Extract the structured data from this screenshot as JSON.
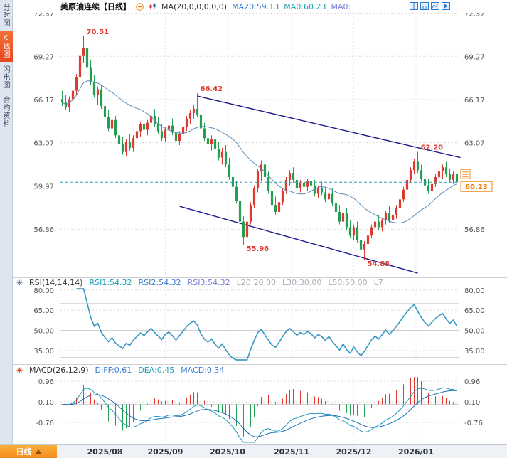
{
  "sidebar": {
    "tabs": [
      {
        "id": "time-chart",
        "label": "分时图",
        "active": false
      },
      {
        "id": "kline-chart",
        "label": "K线图",
        "active": true
      },
      {
        "id": "flash-chart",
        "label": "闪电图",
        "active": false
      },
      {
        "id": "contract-info",
        "label": "合约资料",
        "active": false
      }
    ]
  },
  "header": {
    "title": "美原油连续",
    "period": "【日线】",
    "ma_param": "MA(20,0,0,0,0,0)",
    "ma20": "MA20:59.13",
    "ma0": "MA0:60.23",
    "ma0b": "MA0:"
  },
  "icons": {
    "collapse": "minus-circle",
    "ma_indicator": "candlestick",
    "layout_grid": "grid-4",
    "layout_split": "grid-6",
    "chart_style": "line-chart",
    "play": "play-arrow",
    "rsi_settings": "asterisk",
    "macd_settings": "asterisk"
  },
  "rsi_header": {
    "param": "RSI(14,14,14)",
    "rsi1": "RSI1:54.32",
    "rsi2": "RSI2:54.32",
    "rsi3": "RSI3:54.32",
    "l20": "L20:20.00",
    "l30": "L30:30.00",
    "l50": "L50:50.00",
    "l70": "L7"
  },
  "macd_header": {
    "param": "MACD(26,12,9)",
    "diff": "DIFF:0.61",
    "dea": "DEA:0.45",
    "macd": "MACD:0.34"
  },
  "bottom": {
    "period_label": "日线"
  },
  "chart_data": {
    "type": "candlestick",
    "title": "美原油连续 日线",
    "candle_format": "open,high,low,close",
    "price_ticks": [
      72.37,
      69.27,
      66.17,
      63.07,
      59.97,
      56.86
    ],
    "price_range": [
      53.5,
      72.4
    ],
    "current_price": 60.23,
    "ma_period": 20,
    "month_ticks": [
      {
        "label": "2025/08",
        "index": 12
      },
      {
        "label": "2025/09",
        "index": 29
      },
      {
        "label": "2025/10",
        "index": 46.5
      },
      {
        "label": "2025/11",
        "index": 64.5
      },
      {
        "label": "2025/12",
        "index": 82
      },
      {
        "label": "2026/01",
        "index": 99.5
      }
    ],
    "annotations": [
      {
        "text": "70.51",
        "index": 6,
        "price": 70.51,
        "pos": "above"
      },
      {
        "text": "66.42",
        "index": 38,
        "price": 66.42,
        "pos": "above"
      },
      {
        "text": "62.20",
        "index": 100,
        "price": 62.2,
        "pos": "above"
      },
      {
        "text": "55.96",
        "index": 51,
        "price": 55.96,
        "pos": "below"
      },
      {
        "text": "54.88",
        "index": 85,
        "price": 54.88,
        "pos": "below"
      }
    ],
    "trendlines": [
      {
        "from": {
          "index": 38,
          "price": 66.42
        },
        "to": {
          "index": 112,
          "price": 62.0
        }
      },
      {
        "from": {
          "index": 33,
          "price": 58.5
        },
        "to": {
          "index": 100,
          "price": 53.7
        }
      }
    ],
    "candles": [
      [
        66.2,
        66.8,
        65.7,
        66.0
      ],
      [
        66.0,
        66.5,
        65.4,
        65.6
      ],
      [
        65.6,
        66.4,
        65.3,
        66.2
      ],
      [
        66.2,
        67.0,
        65.9,
        66.8
      ],
      [
        66.8,
        68.0,
        66.5,
        67.8
      ],
      [
        67.8,
        69.6,
        67.5,
        69.3
      ],
      [
        69.3,
        70.51,
        68.8,
        69.9
      ],
      [
        69.9,
        70.1,
        68.3,
        68.5
      ],
      [
        68.5,
        69.0,
        67.2,
        67.4
      ],
      [
        67.4,
        67.9,
        66.3,
        66.5
      ],
      [
        66.5,
        67.1,
        65.8,
        66.9
      ],
      [
        66.9,
        67.2,
        65.5,
        65.7
      ],
      [
        65.7,
        66.2,
        64.7,
        64.9
      ],
      [
        64.9,
        65.4,
        63.9,
        64.1
      ],
      [
        64.1,
        64.9,
        63.8,
        64.7
      ],
      [
        64.7,
        65.0,
        63.4,
        63.6
      ],
      [
        63.6,
        64.2,
        62.8,
        63.0
      ],
      [
        63.0,
        63.5,
        62.2,
        62.4
      ],
      [
        62.4,
        63.3,
        62.1,
        63.1
      ],
      [
        63.1,
        63.7,
        62.5,
        62.7
      ],
      [
        62.7,
        63.6,
        62.4,
        63.4
      ],
      [
        63.4,
        64.1,
        63.0,
        63.9
      ],
      [
        63.9,
        64.6,
        63.5,
        64.4
      ],
      [
        64.4,
        65.0,
        63.8,
        64.0
      ],
      [
        64.0,
        64.7,
        63.6,
        64.5
      ],
      [
        64.5,
        65.2,
        64.1,
        65.0
      ],
      [
        65.0,
        65.5,
        64.2,
        64.4
      ],
      [
        64.4,
        64.9,
        63.7,
        63.9
      ],
      [
        63.9,
        64.4,
        63.2,
        63.4
      ],
      [
        63.4,
        64.2,
        63.1,
        64.0
      ],
      [
        64.0,
        64.6,
        63.5,
        64.3
      ],
      [
        64.3,
        64.8,
        63.6,
        63.8
      ],
      [
        63.8,
        64.3,
        63.0,
        63.2
      ],
      [
        63.2,
        63.9,
        62.9,
        63.7
      ],
      [
        63.7,
        64.4,
        63.4,
        64.2
      ],
      [
        64.2,
        65.0,
        63.9,
        64.8
      ],
      [
        64.8,
        65.4,
        64.4,
        65.2
      ],
      [
        65.2,
        65.8,
        64.8,
        65.5
      ],
      [
        65.5,
        66.42,
        64.9,
        65.1
      ],
      [
        65.1,
        65.4,
        63.9,
        64.1
      ],
      [
        64.1,
        64.5,
        63.2,
        63.4
      ],
      [
        63.4,
        64.0,
        62.8,
        63.0
      ],
      [
        63.0,
        63.6,
        62.5,
        63.3
      ],
      [
        63.3,
        63.8,
        62.4,
        62.6
      ],
      [
        62.6,
        63.1,
        61.8,
        62.0
      ],
      [
        62.0,
        62.7,
        61.5,
        62.4
      ],
      [
        62.4,
        62.9,
        61.3,
        61.5
      ],
      [
        61.5,
        62.0,
        60.4,
        60.6
      ],
      [
        60.6,
        61.2,
        59.7,
        59.9
      ],
      [
        59.9,
        60.3,
        58.7,
        58.9
      ],
      [
        58.9,
        59.4,
        57.2,
        57.4
      ],
      [
        57.4,
        57.8,
        55.96,
        56.3
      ],
      [
        56.3,
        57.6,
        56.1,
        57.4
      ],
      [
        57.4,
        58.8,
        57.2,
        58.6
      ],
      [
        58.6,
        60.0,
        58.4,
        59.8
      ],
      [
        59.8,
        61.2,
        59.5,
        61.0
      ],
      [
        61.0,
        61.8,
        60.3,
        61.5
      ],
      [
        61.5,
        61.9,
        60.4,
        60.6
      ],
      [
        60.6,
        61.0,
        59.4,
        59.6
      ],
      [
        59.6,
        60.0,
        58.4,
        58.6
      ],
      [
        58.6,
        59.2,
        57.9,
        58.1
      ],
      [
        58.1,
        59.0,
        57.8,
        58.8
      ],
      [
        58.8,
        59.8,
        58.6,
        59.6
      ],
      [
        59.6,
        60.6,
        59.4,
        60.4
      ],
      [
        60.4,
        61.1,
        60.0,
        60.9
      ],
      [
        60.9,
        61.3,
        60.2,
        60.4
      ],
      [
        60.4,
        60.8,
        59.6,
        59.8
      ],
      [
        59.8,
        60.4,
        59.5,
        60.2
      ],
      [
        60.2,
        60.7,
        59.6,
        59.9
      ],
      [
        59.9,
        60.5,
        59.6,
        60.3
      ],
      [
        60.3,
        60.8,
        59.8,
        60.0
      ],
      [
        60.0,
        60.4,
        59.2,
        59.4
      ],
      [
        59.4,
        60.0,
        59.1,
        59.8
      ],
      [
        59.8,
        60.3,
        59.3,
        59.5
      ],
      [
        59.5,
        59.9,
        58.8,
        59.0
      ],
      [
        59.0,
        59.6,
        58.7,
        59.4
      ],
      [
        59.4,
        59.8,
        58.5,
        58.7
      ],
      [
        58.7,
        59.2,
        57.9,
        58.1
      ],
      [
        58.1,
        58.6,
        57.2,
        57.4
      ],
      [
        57.4,
        58.2,
        57.1,
        58.0
      ],
      [
        58.0,
        58.4,
        56.8,
        57.0
      ],
      [
        57.0,
        57.5,
        56.2,
        56.4
      ],
      [
        56.4,
        57.2,
        56.1,
        57.0
      ],
      [
        57.0,
        57.4,
        55.9,
        56.1
      ],
      [
        56.1,
        56.6,
        55.2,
        55.4
      ],
      [
        55.4,
        56.0,
        54.88,
        55.8
      ],
      [
        55.8,
        56.6,
        55.5,
        56.4
      ],
      [
        56.4,
        57.2,
        56.2,
        57.0
      ],
      [
        57.0,
        57.6,
        56.5,
        57.4
      ],
      [
        57.4,
        57.9,
        56.8,
        57.0
      ],
      [
        57.0,
        57.7,
        56.7,
        57.5
      ],
      [
        57.5,
        58.2,
        57.2,
        58.0
      ],
      [
        58.0,
        58.5,
        57.3,
        57.5
      ],
      [
        57.5,
        58.1,
        57.0,
        57.9
      ],
      [
        57.9,
        58.6,
        57.6,
        58.4
      ],
      [
        58.4,
        59.2,
        58.2,
        59.0
      ],
      [
        59.0,
        59.9,
        58.8,
        59.7
      ],
      [
        59.7,
        60.6,
        59.5,
        60.4
      ],
      [
        60.4,
        61.3,
        60.2,
        61.1
      ],
      [
        61.1,
        61.9,
        60.8,
        61.7
      ],
      [
        61.7,
        62.2,
        60.9,
        61.1
      ],
      [
        61.1,
        61.5,
        60.3,
        60.5
      ],
      [
        60.5,
        61.0,
        59.8,
        60.0
      ],
      [
        60.0,
        60.5,
        59.4,
        59.6
      ],
      [
        59.6,
        60.3,
        59.3,
        60.1
      ],
      [
        60.1,
        60.8,
        59.9,
        60.6
      ],
      [
        60.6,
        61.2,
        60.3,
        61.0
      ],
      [
        61.0,
        61.5,
        60.5,
        61.3
      ],
      [
        61.3,
        61.7,
        60.6,
        60.8
      ],
      [
        60.8,
        61.2,
        60.2,
        60.4
      ],
      [
        60.4,
        61.0,
        60.1,
        60.8
      ],
      [
        60.8,
        61.1,
        60.0,
        60.23
      ]
    ],
    "rsi": {
      "period": 14,
      "ticks": [
        80,
        65,
        50,
        35
      ],
      "levels": [
        70,
        50,
        30
      ],
      "range": [
        27,
        82
      ],
      "rsi1": 54.32,
      "rsi2": 54.32,
      "rsi3": 54.32
    },
    "macd": {
      "fast": 12,
      "slow": 26,
      "signal": 9,
      "ticks": [
        0.96,
        0.1,
        -0.76
      ],
      "range": [
        -1.65,
        1.2
      ],
      "diff": 0.61,
      "dea": 0.45,
      "bar": 0.34
    },
    "colors": {
      "up": "#e0392f",
      "down": "#239e52",
      "ma": "#5b8db8",
      "trend": "#1b1b8e",
      "rsi": "#2196b8",
      "rsi2": "#3a6fd8",
      "diff": "#2196b8",
      "dea": "#1b6fb8",
      "grid": "#d8d8d8",
      "annotation": "#e0392f",
      "current_line": "#2aa0b8",
      "current_label": "#f08a1e",
      "active_tab": "#e8481e",
      "period_button": "#f28b1d"
    }
  }
}
